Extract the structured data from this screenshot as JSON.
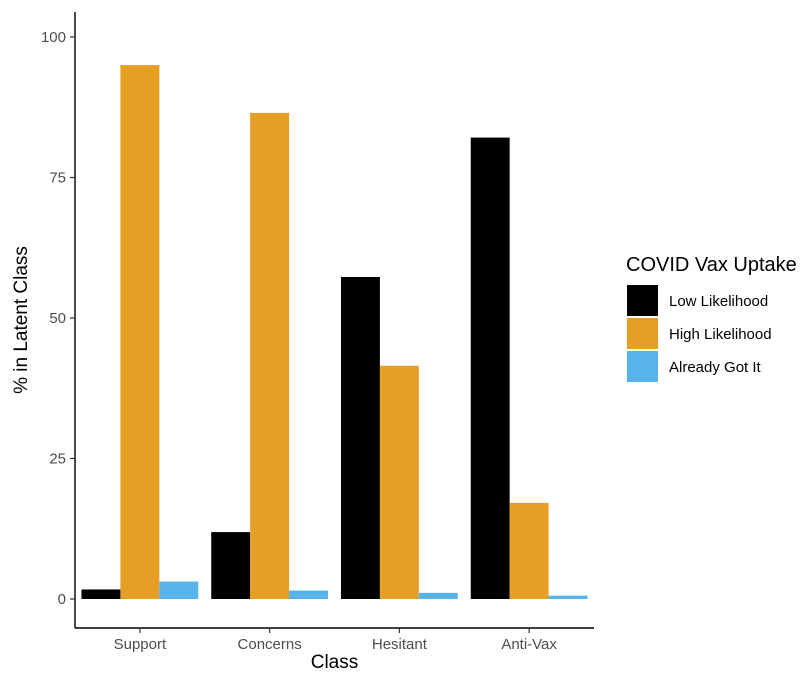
{
  "chart_data": {
    "type": "bar",
    "title": "",
    "xlabel": "Class",
    "ylabel": "% in Latent Class",
    "categories": [
      "Support",
      "Concerns",
      "Hesitant",
      "Anti-Vax"
    ],
    "yticks": [
      0,
      25,
      50,
      75,
      100
    ],
    "ylim": [
      0,
      100
    ],
    "grid": false,
    "legend": {
      "title": "COVID Vax Uptake",
      "position": "right"
    },
    "series": [
      {
        "name": "Low Likelihood",
        "color": "#000000",
        "values": [
          1.7,
          11.9,
          57.3,
          82.1
        ]
      },
      {
        "name": "High Likelihood",
        "color": "#E69F24",
        "values": [
          95.0,
          86.5,
          41.5,
          17.1
        ]
      },
      {
        "name": "Already Got It",
        "color": "#56B4E9",
        "values": [
          3.1,
          1.5,
          1.1,
          0.6
        ]
      }
    ]
  }
}
